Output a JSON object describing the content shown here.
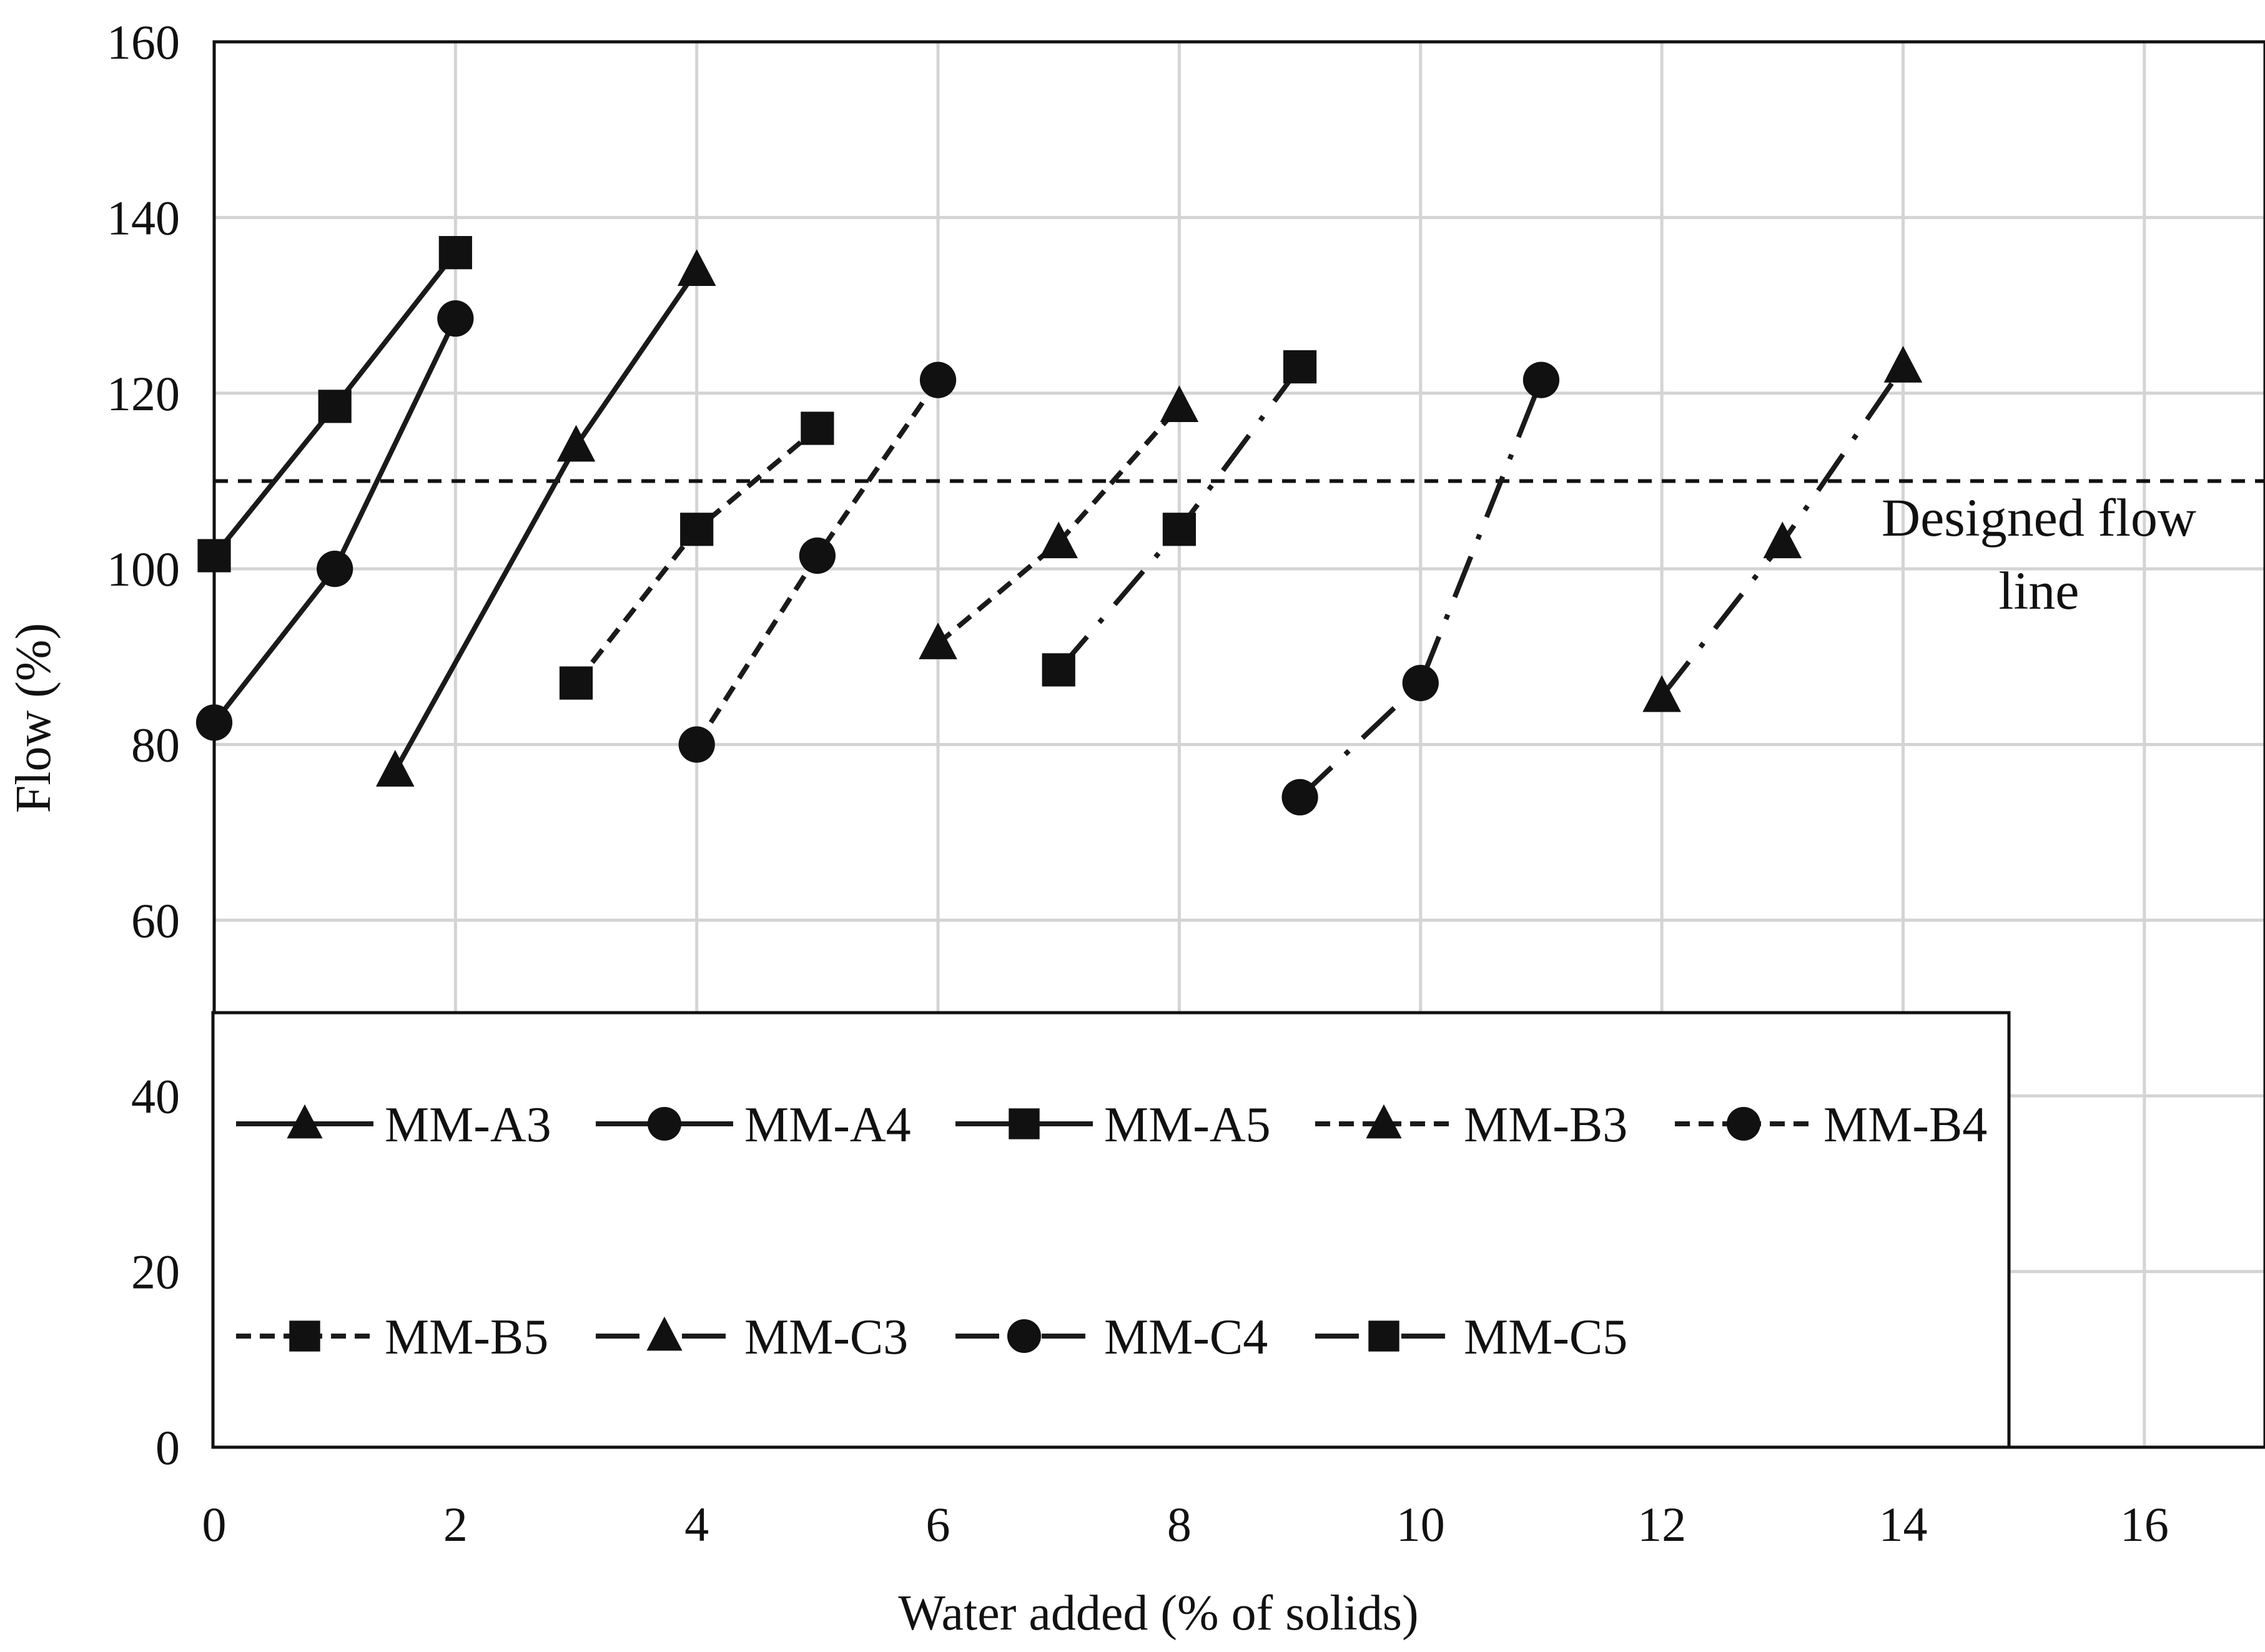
{
  "chart_data": {
    "type": "line",
    "title": "",
    "xlabel": "Water added (% of solids)",
    "ylabel": "Flow (%)",
    "xlim": [
      0,
      17
    ],
    "ylim": [
      0,
      160
    ],
    "xticks": [
      0,
      2,
      4,
      6,
      8,
      10,
      12,
      14,
      16
    ],
    "yticks": [
      0,
      20,
      40,
      60,
      80,
      100,
      120,
      140,
      160
    ],
    "grid": true,
    "reference_line": {
      "y": 110,
      "label_line1": "Designed flow",
      "label_line2": "line"
    },
    "legend_position": "bottom-left inside",
    "series": [
      {
        "name": "MM-A3",
        "marker": "triangle",
        "style": "solid",
        "x": [
          1.5,
          3,
          4
        ],
        "y": [
          77,
          114,
          134
        ]
      },
      {
        "name": "MM-A4",
        "marker": "circle",
        "style": "solid",
        "x": [
          0,
          1,
          2
        ],
        "y": [
          82.5,
          100,
          128.5
        ]
      },
      {
        "name": "MM-A5",
        "marker": "square",
        "style": "solid",
        "x": [
          0,
          1,
          2
        ],
        "y": [
          101.5,
          118.5,
          136
        ]
      },
      {
        "name": "MM-B3",
        "marker": "triangle",
        "style": "dashed",
        "x": [
          6,
          7,
          8
        ],
        "y": [
          91.5,
          103,
          118.5
        ]
      },
      {
        "name": "MM-B4",
        "marker": "circle",
        "style": "dashed",
        "x": [
          4,
          5,
          6
        ],
        "y": [
          80,
          101.5,
          121.5
        ]
      },
      {
        "name": "MM-B5",
        "marker": "square",
        "style": "dashed",
        "x": [
          3,
          4,
          5
        ],
        "y": [
          87,
          104.5,
          116
        ]
      },
      {
        "name": "MM-C3",
        "marker": "triangle",
        "style": "dashdot",
        "x": [
          12,
          13,
          14
        ],
        "y": [
          85.5,
          103,
          123
        ]
      },
      {
        "name": "MM-C4",
        "marker": "circle",
        "style": "dashdot",
        "x": [
          9,
          10,
          11
        ],
        "y": [
          74,
          87,
          121.5
        ]
      },
      {
        "name": "MM-C5",
        "marker": "square",
        "style": "dashdot",
        "x": [
          7,
          8,
          9
        ],
        "y": [
          88.5,
          104.5,
          123
        ]
      }
    ]
  }
}
